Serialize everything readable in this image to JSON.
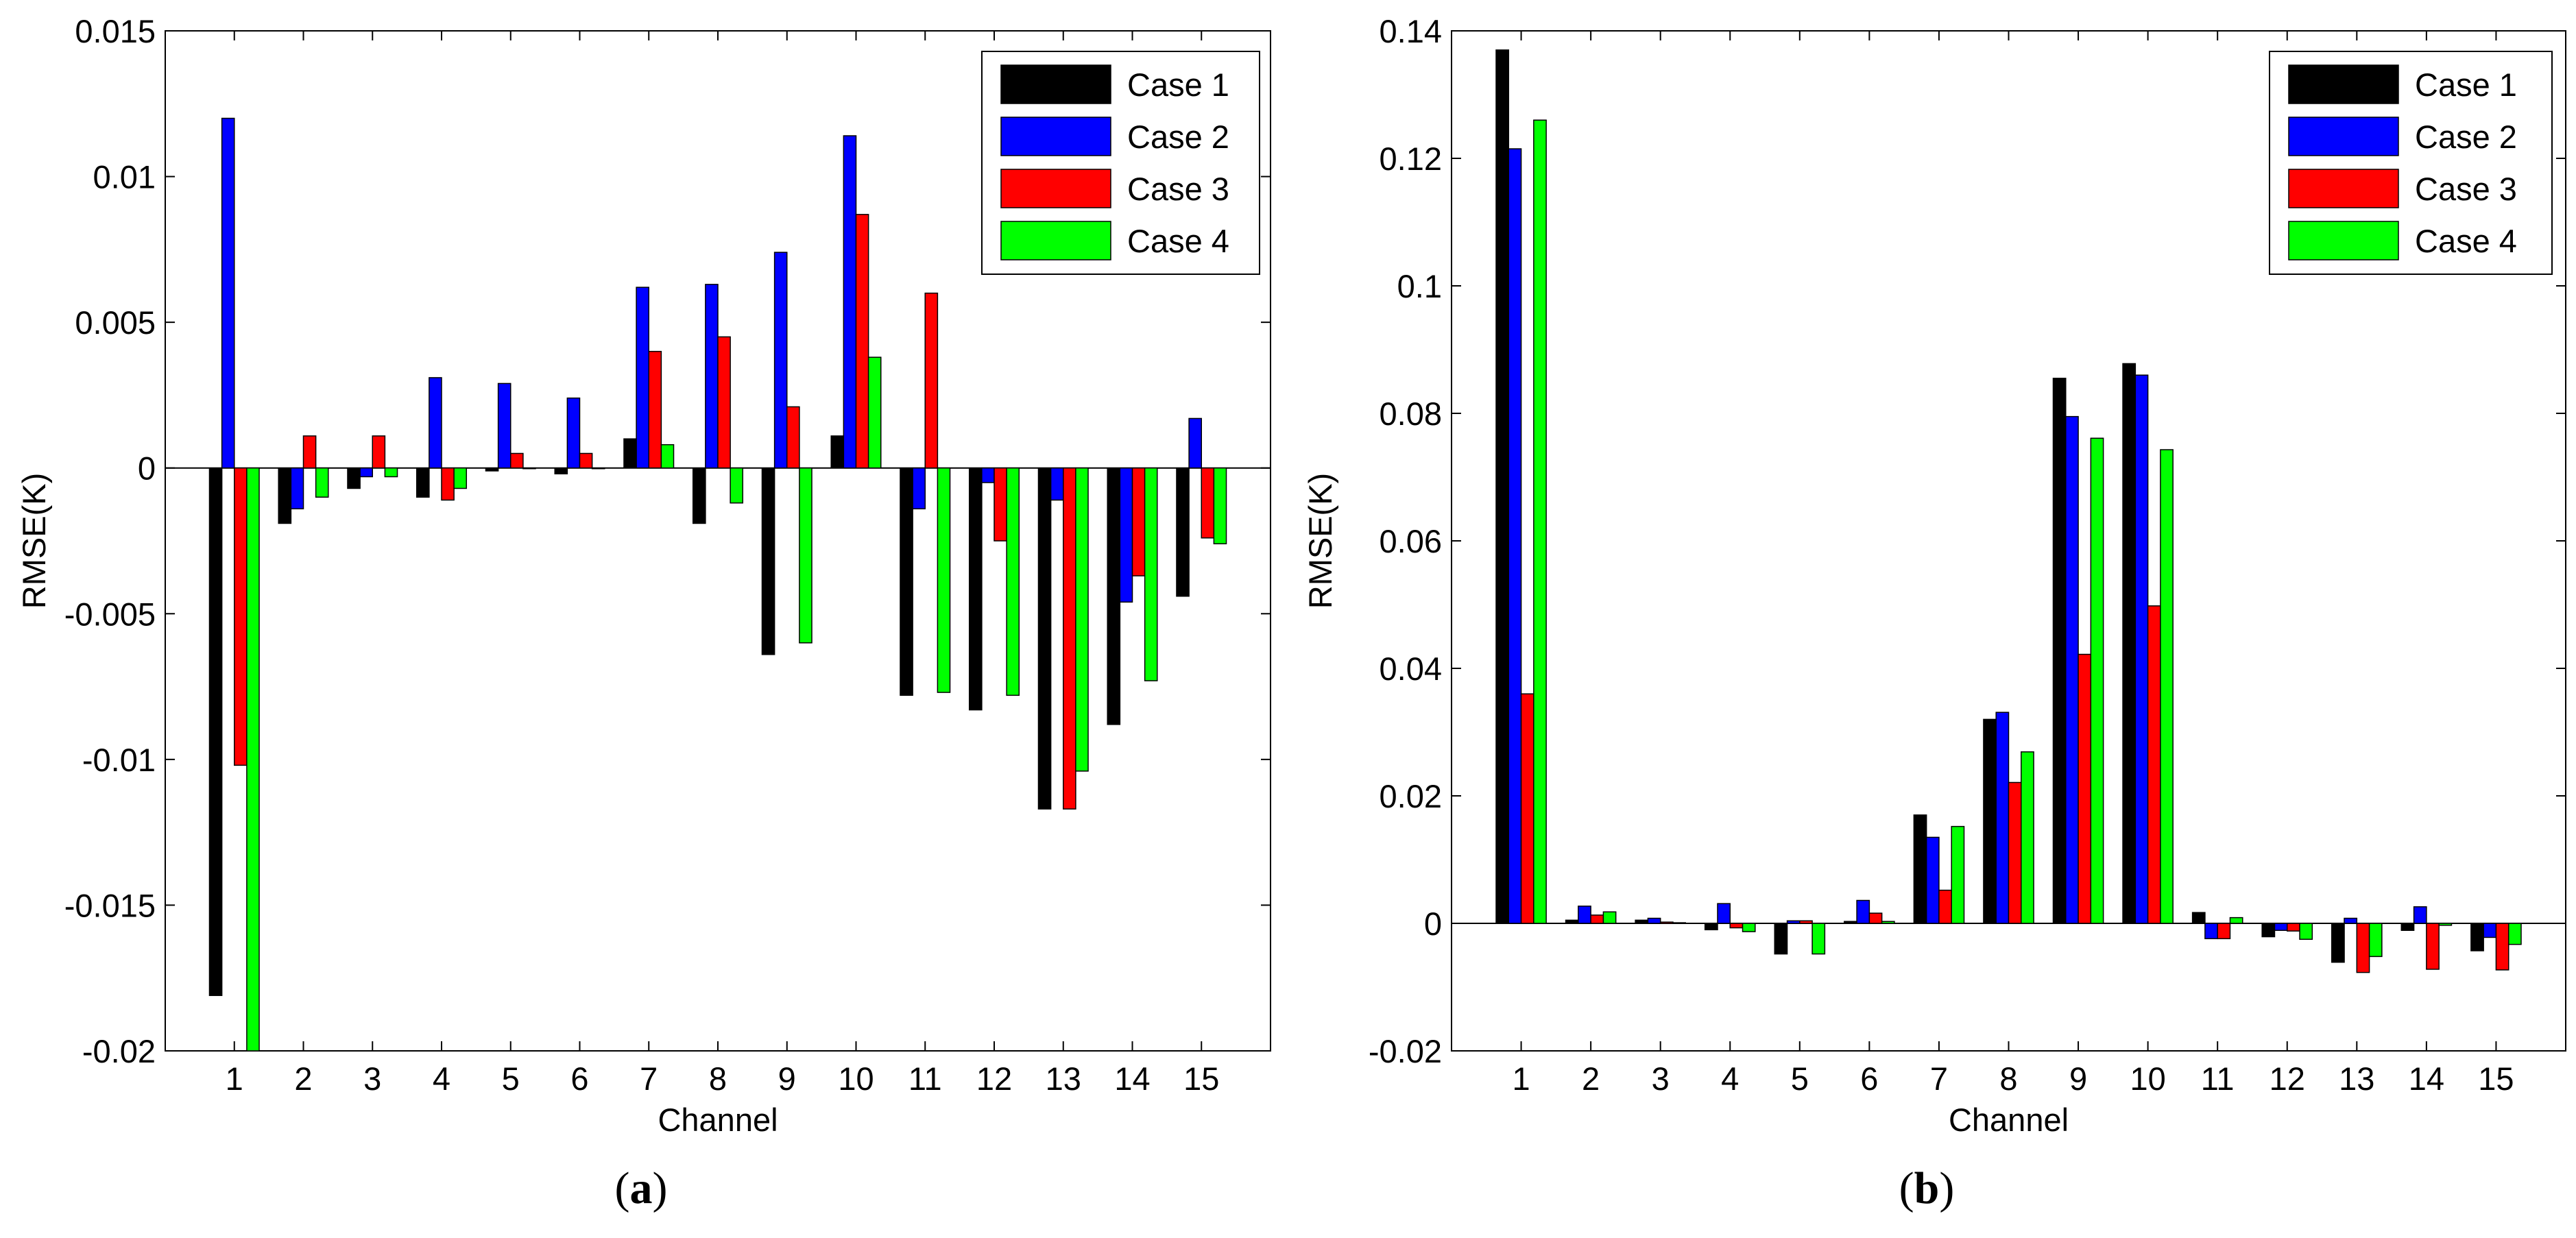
{
  "chart_data": [
    {
      "type": "bar",
      "panel_label": "a",
      "xlabel": "Channel",
      "ylabel": "RMSE(K)",
      "categories": [
        "1",
        "2",
        "3",
        "4",
        "5",
        "6",
        "7",
        "8",
        "9",
        "10",
        "11",
        "12",
        "13",
        "14",
        "15"
      ],
      "ylim": [
        -0.02,
        0.015
      ],
      "yticks": [
        -0.02,
        -0.015,
        -0.01,
        -0.005,
        0,
        0.005,
        0.01,
        0.015
      ],
      "ytick_labels": [
        "-0.02",
        "-0.015",
        "-0.01",
        "-0.005",
        "0",
        "0.005",
        "0.01",
        "0.015"
      ],
      "legend_position": "top-right",
      "grid": false,
      "series": [
        {
          "name": "Case 1",
          "color": "#000000",
          "values": [
            -0.0181,
            -0.0019,
            -0.0007,
            -0.001,
            -0.0001,
            -0.0002,
            0.001,
            -0.0019,
            -0.0064,
            0.0011,
            -0.0078,
            -0.0083,
            -0.0117,
            -0.0088,
            -0.0044
          ]
        },
        {
          "name": "Case 2",
          "color": "#0000ff",
          "values": [
            0.012,
            -0.0014,
            -0.0003,
            0.0031,
            0.0029,
            0.0024,
            0.0062,
            0.0063,
            0.0074,
            0.0114,
            -0.0014,
            -0.0005,
            -0.0011,
            -0.0046,
            0.0017
          ]
        },
        {
          "name": "Case 3",
          "color": "#ff0000",
          "values": [
            -0.0102,
            0.0011,
            0.0011,
            -0.0011,
            0.0005,
            0.0005,
            0.004,
            0.0045,
            0.0021,
            0.0087,
            0.006,
            -0.0025,
            -0.0117,
            -0.0037,
            -0.0024
          ]
        },
        {
          "name": "Case 4",
          "color": "#00ff00",
          "values": [
            -0.02,
            -0.001,
            -0.0003,
            -0.0007,
            0.0,
            0.0,
            0.0008,
            -0.0012,
            -0.006,
            0.0038,
            -0.0077,
            -0.0078,
            -0.0104,
            -0.0073,
            -0.0026
          ]
        }
      ]
    },
    {
      "type": "bar",
      "panel_label": "b",
      "xlabel": "Channel",
      "ylabel": "RMSE(K)",
      "categories": [
        "1",
        "2",
        "3",
        "4",
        "5",
        "6",
        "7",
        "8",
        "9",
        "10",
        "11",
        "12",
        "13",
        "14",
        "15"
      ],
      "ylim": [
        -0.02,
        0.14
      ],
      "yticks": [
        -0.02,
        0,
        0.02,
        0.04,
        0.06,
        0.08,
        0.1,
        0.12,
        0.14
      ],
      "ytick_labels": [
        "-0.02",
        "0",
        "0.02",
        "0.04",
        "0.06",
        "0.08",
        "0.1",
        "0.12",
        "0.14"
      ],
      "legend_position": "top-right",
      "grid": false,
      "series": [
        {
          "name": "Case 1",
          "color": "#000000",
          "values": [
            0.137,
            0.0005,
            0.0005,
            -0.001,
            -0.0048,
            0.0003,
            0.017,
            0.032,
            0.0855,
            0.0878,
            0.0017,
            -0.0021,
            -0.0061,
            -0.0011,
            -0.0043
          ]
        },
        {
          "name": "Case 2",
          "color": "#0000ff",
          "values": [
            0.1215,
            0.0027,
            0.0008,
            0.0031,
            0.0004,
            0.0036,
            0.0135,
            0.0331,
            0.0795,
            0.086,
            -0.0024,
            -0.0011,
            0.0008,
            0.0026,
            -0.0022
          ]
        },
        {
          "name": "Case 3",
          "color": "#ff0000",
          "values": [
            0.036,
            0.0013,
            0.0002,
            -0.0007,
            0.0004,
            0.0016,
            0.0052,
            0.0221,
            0.0422,
            0.0498,
            -0.0024,
            -0.0012,
            -0.0077,
            -0.0072,
            -0.0073
          ]
        },
        {
          "name": "Case 4",
          "color": "#00ff00",
          "values": [
            0.126,
            0.0018,
            0.0001,
            -0.0013,
            -0.0048,
            0.0003,
            0.0152,
            0.0269,
            0.0761,
            0.0743,
            0.0009,
            -0.0025,
            -0.0052,
            -0.0003,
            -0.0033
          ]
        }
      ]
    }
  ]
}
